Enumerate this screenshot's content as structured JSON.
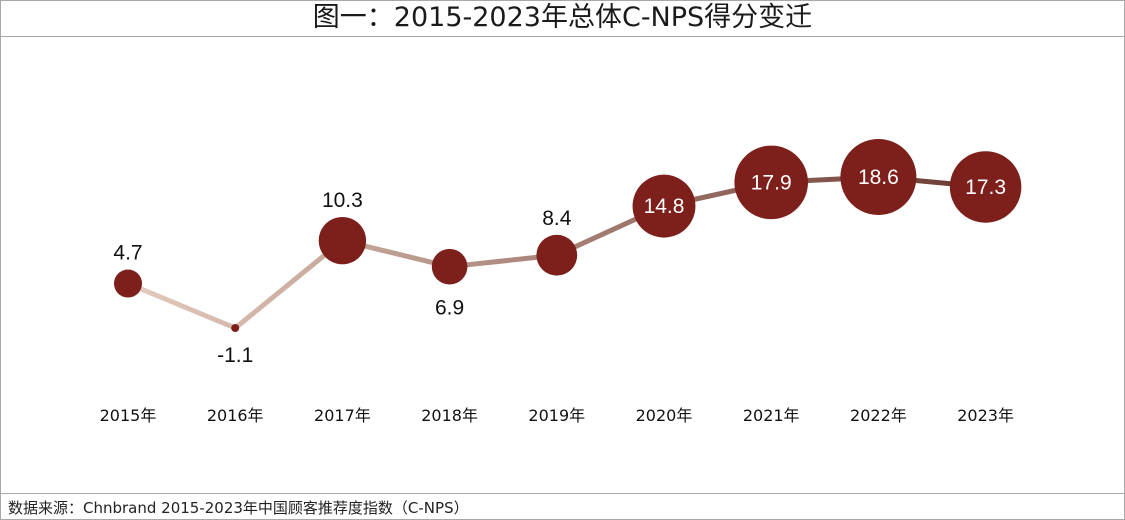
{
  "title": "图一：2015-2023年总体C-NPS得分变迁",
  "source": "数据来源：Chnbrand 2015-2023年中国顾客推荐度指数（C-NPS）",
  "colors": {
    "line_start": "#e4cbbd",
    "line_end": "#6b3a32",
    "marker": "#7d1f1b",
    "marker_label": "#ffffff",
    "outside_label": "#111111"
  },
  "chart_data": {
    "type": "line",
    "title": "图一：2015-2023年总体C-NPS得分变迁",
    "xlabel": "",
    "ylabel": "",
    "categories": [
      "2015年",
      "2016年",
      "2017年",
      "2018年",
      "2019年",
      "2020年",
      "2021年",
      "2022年",
      "2023年"
    ],
    "series": [
      {
        "values": [
          4.7,
          -1.1,
          10.3,
          6.9,
          8.4,
          14.8,
          17.9,
          18.6,
          17.3
        ]
      }
    ],
    "data_labels": [
      "4.7",
      "-1.1",
      "10.3",
      "6.9",
      "8.4",
      "14.8",
      "17.9",
      "18.6",
      "17.3"
    ],
    "ylim": [
      -3,
      22
    ],
    "grid": false,
    "legend": "none",
    "marker_size_encodes_value": true
  }
}
